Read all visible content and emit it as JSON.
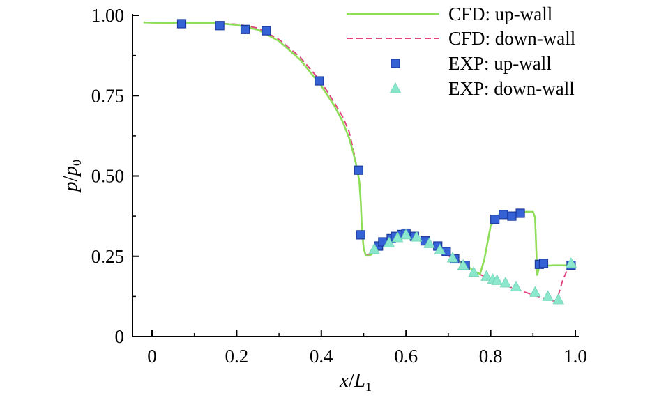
{
  "chart_data": {
    "type": "line",
    "xlabel": "x/L1",
    "ylabel": "p/p0",
    "xlim": [
      -0.03,
      1.0
    ],
    "ylim": [
      0,
      1.0
    ],
    "x_ticks": [
      0,
      0.2,
      0.4,
      0.6,
      0.8,
      1.0
    ],
    "x_tick_labels": [
      "0",
      "0.2",
      "0.4",
      "0.6",
      "0.8",
      "1.0"
    ],
    "y_ticks": [
      0,
      0.25,
      0.5,
      0.75,
      1.0
    ],
    "y_tick_labels": [
      "0",
      "0.25",
      "0.50",
      "0.75",
      "1.00"
    ],
    "legend_position": "top-right",
    "colors": {
      "cfd_up": "#8fde5a",
      "cfd_down": "#e0457f",
      "exp_up_fill": "#3563d6",
      "exp_up_stroke": "#1c3a9e",
      "exp_down_fill": "#8be8cc"
    },
    "series": [
      {
        "name": "CFD: up-wall",
        "kind": "line",
        "style": "solid",
        "points": [
          [
            -0.02,
            0.978
          ],
          [
            0.0,
            0.977
          ],
          [
            0.1,
            0.976
          ],
          [
            0.15,
            0.976
          ],
          [
            0.2,
            0.97
          ],
          [
            0.25,
            0.955
          ],
          [
            0.3,
            0.92
          ],
          [
            0.35,
            0.862
          ],
          [
            0.4,
            0.78
          ],
          [
            0.43,
            0.72
          ],
          [
            0.45,
            0.67
          ],
          [
            0.465,
            0.62
          ],
          [
            0.475,
            0.575
          ],
          [
            0.485,
            0.52
          ],
          [
            0.49,
            0.48
          ],
          [
            0.493,
            0.42
          ],
          [
            0.496,
            0.33
          ],
          [
            0.5,
            0.275
          ],
          [
            0.505,
            0.252
          ],
          [
            0.515,
            0.252
          ],
          [
            0.53,
            0.27
          ],
          [
            0.55,
            0.29
          ],
          [
            0.58,
            0.302
          ],
          [
            0.6,
            0.31
          ],
          [
            0.63,
            0.3
          ],
          [
            0.66,
            0.285
          ],
          [
            0.7,
            0.255
          ],
          [
            0.74,
            0.225
          ],
          [
            0.765,
            0.2
          ],
          [
            0.775,
            0.195
          ],
          [
            0.785,
            0.24
          ],
          [
            0.8,
            0.345
          ],
          [
            0.82,
            0.38
          ],
          [
            0.85,
            0.385
          ],
          [
            0.88,
            0.388
          ],
          [
            0.9,
            0.388
          ],
          [
            0.905,
            0.37
          ],
          [
            0.91,
            0.19
          ],
          [
            0.915,
            0.22
          ],
          [
            0.95,
            0.222
          ],
          [
            0.98,
            0.222
          ],
          [
            0.99,
            0.222
          ]
        ]
      },
      {
        "name": "CFD: down-wall",
        "kind": "line",
        "style": "dashed",
        "points": [
          [
            -0.02,
            0.978
          ],
          [
            0.0,
            0.977
          ],
          [
            0.1,
            0.976
          ],
          [
            0.15,
            0.976
          ],
          [
            0.2,
            0.972
          ],
          [
            0.25,
            0.96
          ],
          [
            0.3,
            0.925
          ],
          [
            0.35,
            0.87
          ],
          [
            0.4,
            0.792
          ],
          [
            0.43,
            0.73
          ],
          [
            0.45,
            0.685
          ],
          [
            0.465,
            0.64
          ],
          [
            0.475,
            0.585
          ],
          [
            0.485,
            0.52
          ],
          [
            0.49,
            0.48
          ],
          [
            0.493,
            0.42
          ],
          [
            0.496,
            0.33
          ],
          [
            0.5,
            0.275
          ],
          [
            0.505,
            0.255
          ],
          [
            0.515,
            0.255
          ],
          [
            0.53,
            0.272
          ],
          [
            0.55,
            0.29
          ],
          [
            0.58,
            0.302
          ],
          [
            0.6,
            0.308
          ],
          [
            0.63,
            0.3
          ],
          [
            0.66,
            0.283
          ],
          [
            0.7,
            0.252
          ],
          [
            0.74,
            0.22
          ],
          [
            0.78,
            0.19
          ],
          [
            0.82,
            0.165
          ],
          [
            0.86,
            0.148
          ],
          [
            0.9,
            0.13
          ],
          [
            0.93,
            0.118
          ],
          [
            0.945,
            0.112
          ],
          [
            0.955,
            0.11
          ],
          [
            0.96,
            0.13
          ],
          [
            0.97,
            0.175
          ],
          [
            0.98,
            0.205
          ],
          [
            0.99,
            0.222
          ]
        ]
      },
      {
        "name": "EXP: up-wall",
        "kind": "marker",
        "marker": "square",
        "points": [
          [
            0.07,
            0.974
          ],
          [
            0.16,
            0.968
          ],
          [
            0.22,
            0.956
          ],
          [
            0.27,
            0.952
          ],
          [
            0.395,
            0.796
          ],
          [
            0.488,
            0.518
          ],
          [
            0.493,
            0.317
          ],
          [
            0.535,
            0.282
          ],
          [
            0.545,
            0.295
          ],
          [
            0.565,
            0.305
          ],
          [
            0.575,
            0.312
          ],
          [
            0.59,
            0.318
          ],
          [
            0.6,
            0.322
          ],
          [
            0.62,
            0.312
          ],
          [
            0.645,
            0.298
          ],
          [
            0.675,
            0.282
          ],
          [
            0.695,
            0.265
          ],
          [
            0.715,
            0.242
          ],
          [
            0.74,
            0.222
          ],
          [
            0.81,
            0.365
          ],
          [
            0.83,
            0.38
          ],
          [
            0.85,
            0.375
          ],
          [
            0.87,
            0.384
          ],
          [
            0.915,
            0.225
          ],
          [
            0.925,
            0.228
          ],
          [
            0.99,
            0.222
          ]
        ]
      },
      {
        "name": "EXP: down-wall",
        "kind": "marker",
        "marker": "triangle",
        "points": [
          [
            0.525,
            0.272
          ],
          [
            0.56,
            0.292
          ],
          [
            0.58,
            0.308
          ],
          [
            0.6,
            0.317
          ],
          [
            0.625,
            0.31
          ],
          [
            0.655,
            0.29
          ],
          [
            0.68,
            0.27
          ],
          [
            0.71,
            0.245
          ],
          [
            0.735,
            0.222
          ],
          [
            0.76,
            0.2
          ],
          [
            0.79,
            0.188
          ],
          [
            0.805,
            0.178
          ],
          [
            0.815,
            0.175
          ],
          [
            0.835,
            0.167
          ],
          [
            0.86,
            0.155
          ],
          [
            0.905,
            0.138
          ],
          [
            0.935,
            0.125
          ],
          [
            0.96,
            0.115
          ],
          [
            0.99,
            0.228
          ]
        ]
      }
    ]
  }
}
